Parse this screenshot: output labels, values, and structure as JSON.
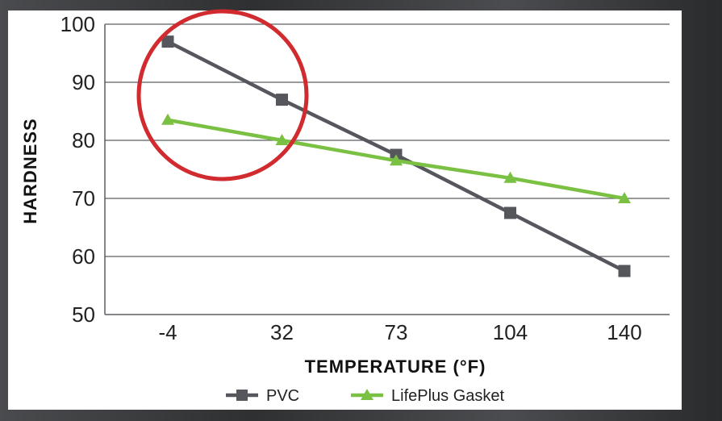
{
  "chart_data": {
    "type": "line",
    "categories": [
      "-4",
      "32",
      "73",
      "104",
      "140"
    ],
    "xlabel": "TEMPERATURE (°F)",
    "ylabel": "HARDNESS",
    "ylim": [
      50,
      100
    ],
    "yticks": [
      50,
      60,
      70,
      80,
      90,
      100
    ],
    "grid": "horizontal",
    "legend_position": "bottom",
    "series": [
      {
        "name": "PVC",
        "values": [
          97,
          87,
          77.5,
          67.5,
          57.5
        ],
        "color": "#55575c",
        "marker": "square"
      },
      {
        "name": "LifePlus Gasket",
        "values": [
          83.5,
          80,
          76.5,
          73.5,
          70
        ],
        "color": "#7ac143",
        "marker": "triangle"
      }
    ],
    "annotation": {
      "shape": "circle",
      "color": "#d12a2f"
    }
  }
}
